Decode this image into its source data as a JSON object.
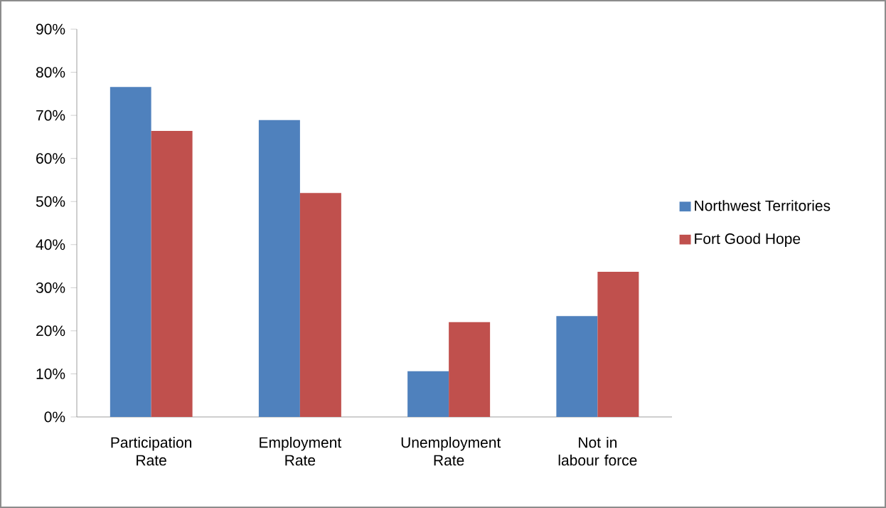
{
  "chart_data": {
    "type": "bar",
    "categories": [
      "Participation Rate",
      "Employment Rate",
      "Unemployment Rate",
      "Not in labour force"
    ],
    "series": [
      {
        "name": "Northwest Territories",
        "color": "#4f81bd",
        "values": [
          76.6,
          68.9,
          10.6,
          23.4
        ]
      },
      {
        "name": "Fort Good Hope",
        "color": "#c0504d",
        "values": [
          66.4,
          52.0,
          22.0,
          33.7
        ]
      }
    ],
    "ylim": [
      0,
      90
    ],
    "yticks": [
      {
        "value": 0,
        "label": "0%"
      },
      {
        "value": 10,
        "label": "10%"
      },
      {
        "value": 20,
        "label": "20%"
      },
      {
        "value": 30,
        "label": "30%"
      },
      {
        "value": 40,
        "label": "40%"
      },
      {
        "value": 50,
        "label": "50%"
      },
      {
        "value": 60,
        "label": "60%"
      },
      {
        "value": 70,
        "label": "70%"
      },
      {
        "value": 80,
        "label": "80%"
      },
      {
        "value": 90,
        "label": "90%"
      }
    ],
    "grid": false,
    "legend": "right"
  }
}
